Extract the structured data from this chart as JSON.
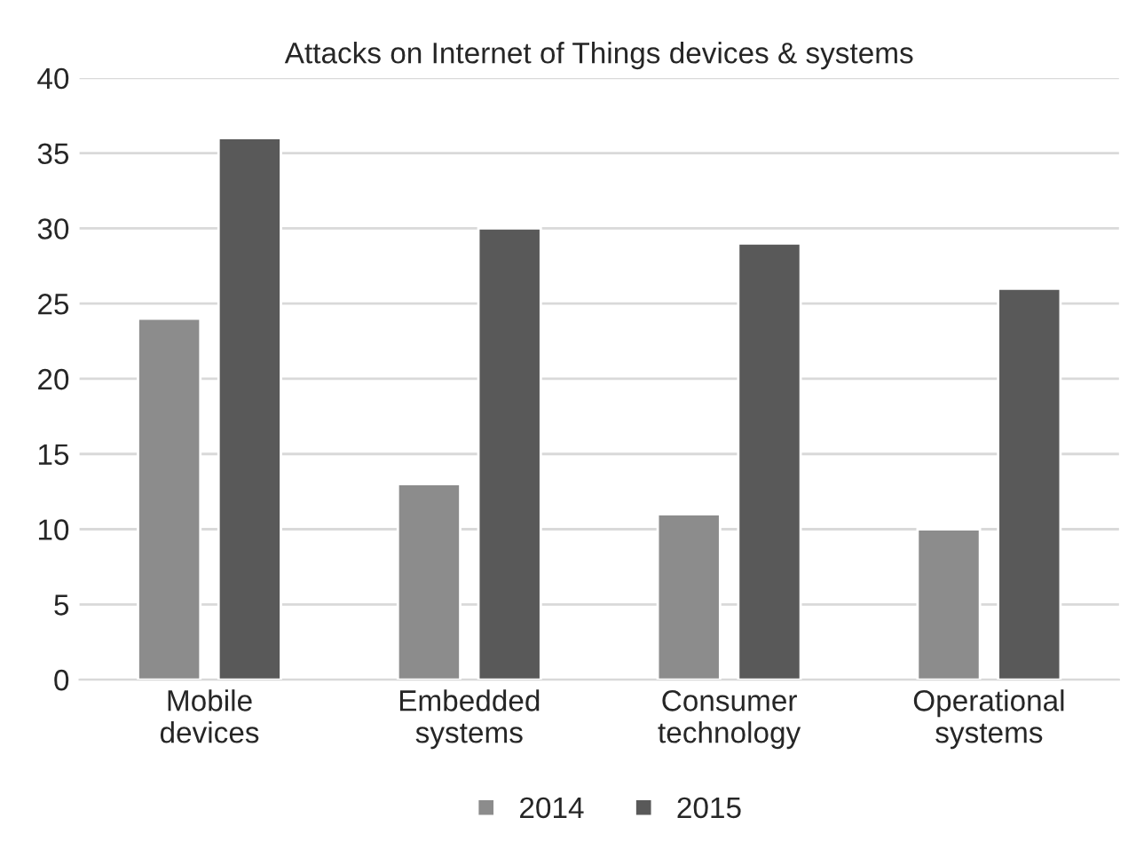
{
  "chart_data": {
    "type": "bar",
    "title": "Attacks on Internet of Things devices & systems",
    "categories": [
      "Mobile devices",
      "Embedded systems",
      "Consumer technology",
      "Operational systems"
    ],
    "series": [
      {
        "name": "2014",
        "color": "#8c8c8c",
        "values": [
          24,
          13,
          11,
          10
        ]
      },
      {
        "name": "2015",
        "color": "#595959",
        "values": [
          36,
          30,
          29,
          26
        ]
      }
    ],
    "ylim": [
      0,
      40
    ],
    "yticks": [
      0,
      5,
      10,
      15,
      20,
      25,
      30,
      35,
      40
    ],
    "grid": "y",
    "legend": "bottom"
  }
}
